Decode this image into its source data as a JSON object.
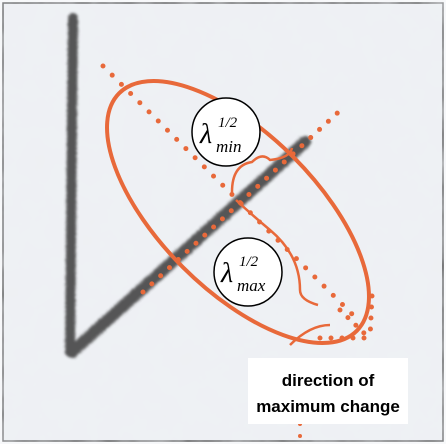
{
  "labels": {
    "lambda_min": {
      "symbol": "λ",
      "superscript": "1/2",
      "subscript": "min"
    },
    "lambda_max": {
      "symbol": "λ",
      "superscript": "1/2",
      "subscript": "max"
    },
    "caption": {
      "line1": "direction of",
      "line2": "maximum change"
    }
  }
}
